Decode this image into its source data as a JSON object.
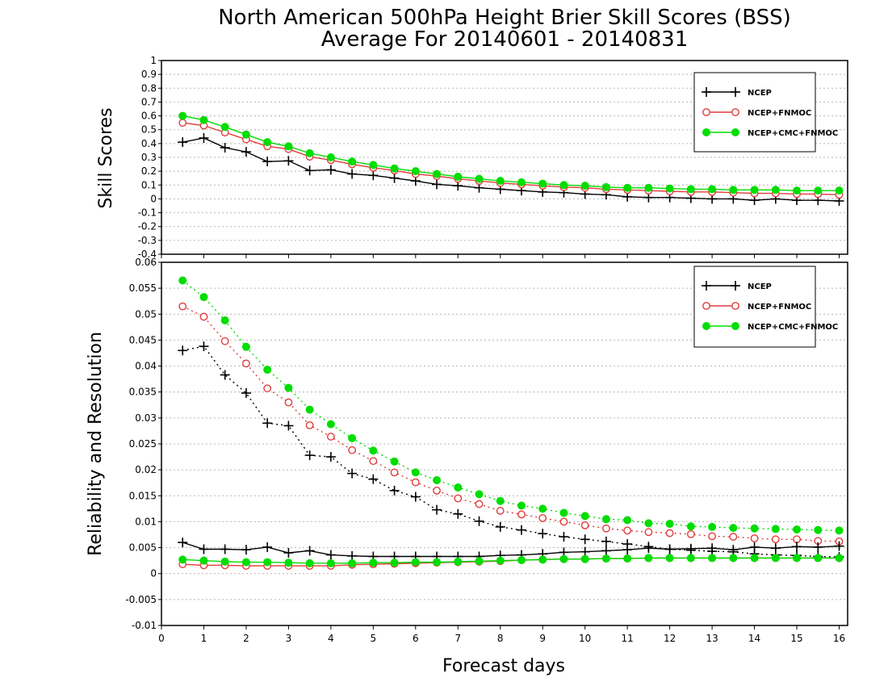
{
  "title_line1": "North American 500hPa Height Brier Skill Scores (BSS)",
  "title_line2": "Average For 20140601 - 20140831",
  "xlabel": "Forecast days",
  "colors": {
    "NCEP": "#000000",
    "NCEP+FNMOC": "#e03c3c",
    "NCEP+CMC+FNMOC": "#00dd00"
  },
  "chart_data": [
    {
      "type": "line",
      "ylabel": "Skill Scores",
      "xlim": [
        0,
        16.2
      ],
      "ylim": [
        -0.4,
        1.0
      ],
      "xticks": [
        0,
        1,
        2,
        3,
        4,
        5,
        6,
        7,
        8,
        9,
        10,
        11,
        12,
        13,
        14,
        15,
        16
      ],
      "yticks": [
        -0.4,
        -0.3,
        -0.2,
        -0.1,
        0,
        0.1,
        0.2,
        0.3,
        0.4,
        0.5,
        0.6,
        0.7,
        0.8,
        0.9,
        1
      ],
      "grid": true,
      "legend_position": "top-right",
      "legend": [
        "NCEP",
        "NCEP+FNMOC",
        "NCEP+CMC+FNMOC"
      ],
      "x": [
        0.5,
        1,
        1.5,
        2,
        2.5,
        3,
        3.5,
        4,
        4.5,
        5,
        5.5,
        6,
        6.5,
        7,
        7.5,
        8,
        8.5,
        9,
        9.5,
        10,
        10.5,
        11,
        11.5,
        12,
        12.5,
        13,
        13.5,
        14,
        14.5,
        15,
        15.5,
        16
      ],
      "series": [
        {
          "name": "NCEP",
          "marker": "plus",
          "style": "solid",
          "values": [
            0.41,
            0.44,
            0.37,
            0.34,
            0.27,
            0.275,
            0.205,
            0.21,
            0.18,
            0.17,
            0.15,
            0.13,
            0.105,
            0.095,
            0.08,
            0.07,
            0.06,
            0.05,
            0.045,
            0.035,
            0.03,
            0.015,
            0.01,
            0.01,
            0.005,
            0.0,
            0.0,
            -0.01,
            0.0,
            -0.01,
            -0.01,
            -0.015
          ]
        },
        {
          "name": "NCEP+FNMOC",
          "marker": "open-circle",
          "style": "solid",
          "values": [
            0.55,
            0.53,
            0.48,
            0.43,
            0.38,
            0.36,
            0.305,
            0.28,
            0.25,
            0.225,
            0.205,
            0.18,
            0.165,
            0.145,
            0.13,
            0.115,
            0.105,
            0.095,
            0.085,
            0.08,
            0.07,
            0.065,
            0.06,
            0.055,
            0.05,
            0.05,
            0.045,
            0.04,
            0.04,
            0.035,
            0.035,
            0.03
          ]
        },
        {
          "name": "NCEP+CMC+FNMOC",
          "marker": "filled-circle",
          "style": "solid",
          "values": [
            0.6,
            0.57,
            0.52,
            0.465,
            0.41,
            0.38,
            0.33,
            0.3,
            0.27,
            0.245,
            0.22,
            0.2,
            0.18,
            0.16,
            0.145,
            0.13,
            0.12,
            0.11,
            0.1,
            0.095,
            0.085,
            0.08,
            0.08,
            0.075,
            0.07,
            0.07,
            0.065,
            0.065,
            0.065,
            0.06,
            0.06,
            0.06
          ]
        }
      ]
    },
    {
      "type": "line",
      "ylabel": "Reliability and Resolution",
      "xlim": [
        0,
        16.2
      ],
      "ylim": [
        -0.01,
        0.06
      ],
      "xticks": [
        0,
        1,
        2,
        3,
        4,
        5,
        6,
        7,
        8,
        9,
        10,
        11,
        12,
        13,
        14,
        15,
        16
      ],
      "yticks": [
        -0.01,
        -0.005,
        0,
        0.005,
        0.01,
        0.015,
        0.02,
        0.025,
        0.03,
        0.035,
        0.04,
        0.045,
        0.05,
        0.055,
        0.06
      ],
      "grid": true,
      "legend_position": "top-right",
      "legend": [
        "NCEP",
        "NCEP+FNMOC",
        "NCEP+CMC+FNMOC"
      ],
      "x": [
        0.5,
        1,
        1.5,
        2,
        2.5,
        3,
        3.5,
        4,
        4.5,
        5,
        5.5,
        6,
        6.5,
        7,
        7.5,
        8,
        8.5,
        9,
        9.5,
        10,
        10.5,
        11,
        11.5,
        12,
        12.5,
        13,
        13.5,
        14,
        14.5,
        15,
        15.5,
        16
      ],
      "series": [
        {
          "name": "NCEP",
          "component": "resolution",
          "marker": "plus",
          "style": "dotted",
          "values": [
            0.043,
            0.0438,
            0.0383,
            0.0348,
            0.029,
            0.0285,
            0.0228,
            0.0225,
            0.0193,
            0.0182,
            0.016,
            0.0148,
            0.0123,
            0.0115,
            0.0101,
            0.009,
            0.0084,
            0.0077,
            0.0071,
            0.0066,
            0.0062,
            0.0057,
            0.0052,
            0.0047,
            0.0045,
            0.0043,
            0.0042,
            0.0038,
            0.0036,
            0.0035,
            0.0033,
            0.0032
          ]
        },
        {
          "name": "NCEP+FNMOC",
          "component": "resolution",
          "marker": "open-circle",
          "style": "dotted",
          "values": [
            0.0515,
            0.0495,
            0.0448,
            0.0405,
            0.0357,
            0.033,
            0.0286,
            0.0264,
            0.0238,
            0.0217,
            0.0195,
            0.0176,
            0.016,
            0.0145,
            0.0134,
            0.0121,
            0.0114,
            0.0107,
            0.01,
            0.0093,
            0.0087,
            0.0083,
            0.008,
            0.0078,
            0.0076,
            0.0072,
            0.0071,
            0.0068,
            0.0066,
            0.0066,
            0.0063,
            0.0062
          ]
        },
        {
          "name": "NCEP+CMC+FNMOC",
          "component": "resolution",
          "marker": "filled-circle",
          "style": "dotted",
          "values": [
            0.0565,
            0.0533,
            0.0488,
            0.0437,
            0.0393,
            0.0358,
            0.0316,
            0.0288,
            0.0261,
            0.0237,
            0.0216,
            0.0195,
            0.018,
            0.0166,
            0.0153,
            0.014,
            0.0131,
            0.0125,
            0.0117,
            0.0111,
            0.0105,
            0.0103,
            0.0097,
            0.0096,
            0.0091,
            0.009,
            0.0088,
            0.0087,
            0.0086,
            0.0085,
            0.0084,
            0.0083
          ]
        },
        {
          "name": "NCEP",
          "component": "reliability",
          "marker": "plus",
          "style": "solid",
          "values": [
            0.006,
            0.0047,
            0.0047,
            0.0046,
            0.0051,
            0.004,
            0.0044,
            0.0036,
            0.0034,
            0.0033,
            0.0033,
            0.0033,
            0.0033,
            0.0033,
            0.0033,
            0.0035,
            0.0036,
            0.0038,
            0.0041,
            0.0042,
            0.0044,
            0.0046,
            0.0049,
            0.0047,
            0.0048,
            0.0049,
            0.0046,
            0.0051,
            0.0049,
            0.0052,
            0.0051,
            0.0053
          ]
        },
        {
          "name": "NCEP+FNMOC",
          "component": "reliability",
          "marker": "open-circle",
          "style": "solid",
          "values": [
            0.0018,
            0.0016,
            0.0016,
            0.0015,
            0.0015,
            0.0015,
            0.0015,
            0.0015,
            0.0017,
            0.0018,
            0.0019,
            0.002,
            0.0021,
            0.0022,
            0.0023,
            0.0024,
            0.0026,
            0.0027,
            0.0028,
            0.0028,
            0.0029,
            0.0029,
            0.003,
            0.003,
            0.003,
            0.003,
            0.003,
            0.003,
            0.003,
            0.003,
            0.003,
            0.003
          ]
        },
        {
          "name": "NCEP+CMC+FNMOC",
          "component": "reliability",
          "marker": "filled-circle",
          "style": "solid",
          "values": [
            0.0027,
            0.0025,
            0.0023,
            0.0022,
            0.0022,
            0.0021,
            0.002,
            0.002,
            0.002,
            0.0021,
            0.0021,
            0.0022,
            0.0022,
            0.0023,
            0.0024,
            0.0025,
            0.0026,
            0.0027,
            0.0028,
            0.0028,
            0.0029,
            0.0029,
            0.003,
            0.003,
            0.003,
            0.003,
            0.003,
            0.003,
            0.003,
            0.003,
            0.003,
            0.003
          ]
        }
      ]
    }
  ]
}
